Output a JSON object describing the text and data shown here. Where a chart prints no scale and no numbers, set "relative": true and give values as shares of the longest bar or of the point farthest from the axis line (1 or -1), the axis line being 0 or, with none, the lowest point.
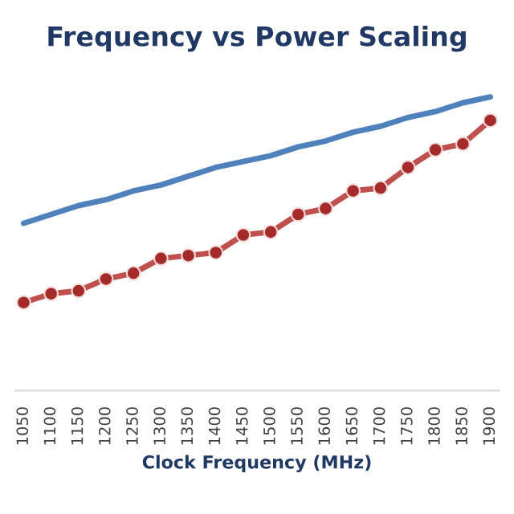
{
  "chart_data": {
    "type": "line",
    "title": "Frequency vs Power Scaling",
    "xlabel": "Clock Frequency (MHz)",
    "relative": true,
    "categories": [
      "1050",
      "1100",
      "1150",
      "1200",
      "1250",
      "1300",
      "1350",
      "1400",
      "1450",
      "1500",
      "1550",
      "1600",
      "1650",
      "1700",
      "1750",
      "1800",
      "1850",
      "1900"
    ],
    "series": [
      {
        "color": "#4f81bd",
        "marker": "none",
        "values": [
          0.57,
          0.6,
          0.63,
          0.65,
          0.68,
          0.7,
          0.73,
          0.76,
          0.78,
          0.8,
          0.83,
          0.85,
          0.88,
          0.9,
          0.93,
          0.95,
          0.98,
          1.0
        ]
      },
      {
        "color": "#c0504d",
        "marker": "circle",
        "values": [
          0.3,
          0.33,
          0.34,
          0.38,
          0.4,
          0.45,
          0.46,
          0.47,
          0.53,
          0.54,
          0.6,
          0.62,
          0.68,
          0.69,
          0.76,
          0.82,
          0.84,
          0.92
        ]
      }
    ]
  }
}
